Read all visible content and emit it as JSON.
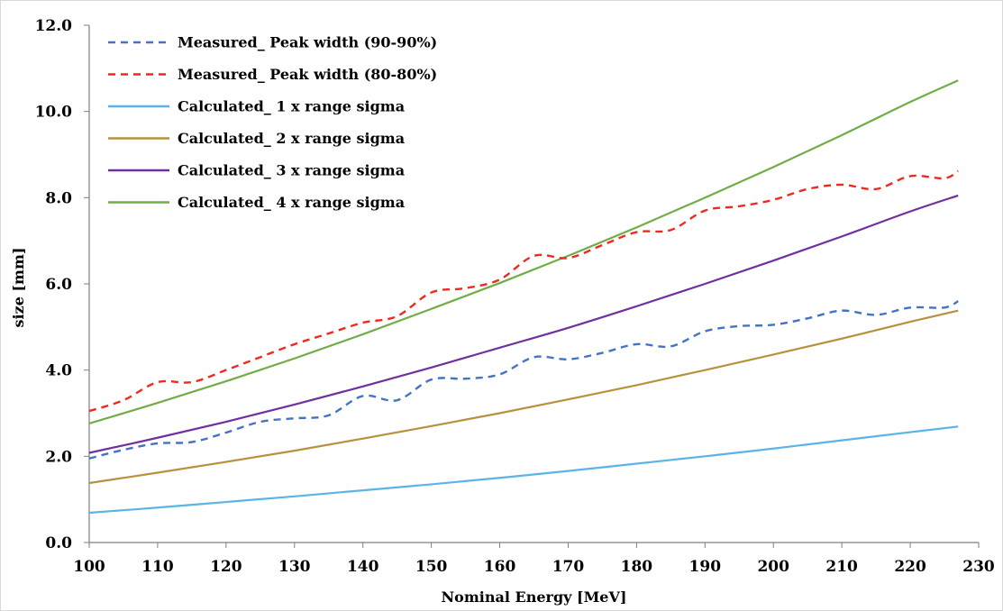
{
  "chart_data": {
    "type": "line",
    "xlabel": "Nominal Energy [MeV]",
    "ylabel": "size [mm]",
    "xlim": [
      100,
      230
    ],
    "ylim": [
      0,
      12
    ],
    "x_ticks": [
      "100",
      "110",
      "120",
      "130",
      "140",
      "150",
      "160",
      "170",
      "180",
      "190",
      "200",
      "210",
      "220",
      "230"
    ],
    "y_ticks": [
      "0.0",
      "2.0",
      "4.0",
      "6.0",
      "8.0",
      "10.0",
      "12.0"
    ],
    "grid": false,
    "legend_position": "top-left",
    "series": [
      {
        "name": "Measured_ Peak width (90-90%)",
        "color": "#4472c4",
        "dashed": true,
        "x": [
          100,
          105,
          110,
          115,
          120,
          125,
          130,
          135,
          140,
          145,
          150,
          155,
          160,
          165,
          170,
          175,
          180,
          185,
          190,
          195,
          200,
          205,
          210,
          215,
          220,
          225,
          227
        ],
        "y": [
          1.95,
          2.15,
          2.3,
          2.33,
          2.55,
          2.8,
          2.88,
          2.95,
          3.4,
          3.3,
          3.78,
          3.8,
          3.9,
          4.3,
          4.25,
          4.4,
          4.6,
          4.55,
          4.9,
          5.02,
          5.05,
          5.2,
          5.38,
          5.28,
          5.45,
          5.45,
          5.6
        ]
      },
      {
        "name": "Measured_ Peak width (80-80%)",
        "color": "#ee2a20",
        "dashed": true,
        "x": [
          100,
          105,
          110,
          115,
          120,
          125,
          130,
          135,
          140,
          145,
          150,
          155,
          160,
          165,
          170,
          175,
          180,
          185,
          190,
          195,
          200,
          205,
          210,
          215,
          220,
          225,
          227
        ],
        "y": [
          3.05,
          3.3,
          3.72,
          3.72,
          4.0,
          4.3,
          4.6,
          4.85,
          5.1,
          5.25,
          5.8,
          5.9,
          6.1,
          6.65,
          6.6,
          6.9,
          7.2,
          7.25,
          7.7,
          7.8,
          7.95,
          8.2,
          8.3,
          8.2,
          8.5,
          8.45,
          8.62
        ]
      },
      {
        "name": "Calculated_ 1 x range sigma",
        "color": "#5bb3e8",
        "dashed": false,
        "x": [
          100,
          110,
          120,
          130,
          140,
          150,
          160,
          170,
          180,
          190,
          200,
          210,
          220,
          227
        ],
        "y": [
          0.69,
          0.81,
          0.94,
          1.07,
          1.21,
          1.35,
          1.5,
          1.66,
          1.83,
          2.0,
          2.18,
          2.37,
          2.56,
          2.69
        ]
      },
      {
        "name": "Calculated_ 2 x range sigma",
        "color": "#b8913e",
        "dashed": false,
        "x": [
          100,
          110,
          120,
          130,
          140,
          150,
          160,
          170,
          180,
          190,
          200,
          210,
          220,
          227
        ],
        "y": [
          1.38,
          1.62,
          1.87,
          2.13,
          2.41,
          2.7,
          3.0,
          3.32,
          3.65,
          4.0,
          4.36,
          4.73,
          5.12,
          5.38
        ]
      },
      {
        "name": "Calculated_ 3 x range sigma",
        "color": "#7030a0",
        "dashed": false,
        "x": [
          100,
          110,
          120,
          130,
          140,
          150,
          160,
          170,
          180,
          190,
          200,
          210,
          220,
          227
        ],
        "y": [
          2.08,
          2.43,
          2.8,
          3.2,
          3.62,
          4.06,
          4.52,
          4.98,
          5.48,
          6.0,
          6.54,
          7.1,
          7.68,
          8.05
        ]
      },
      {
        "name": "Calculated_ 4 x range sigma",
        "color": "#70ad47",
        "dashed": false,
        "x": [
          100,
          110,
          120,
          130,
          140,
          150,
          160,
          170,
          180,
          190,
          200,
          210,
          220,
          227
        ],
        "y": [
          2.76,
          3.24,
          3.74,
          4.27,
          4.83,
          5.42,
          6.02,
          6.65,
          7.31,
          8.0,
          8.71,
          9.45,
          10.22,
          10.72
        ]
      }
    ]
  }
}
